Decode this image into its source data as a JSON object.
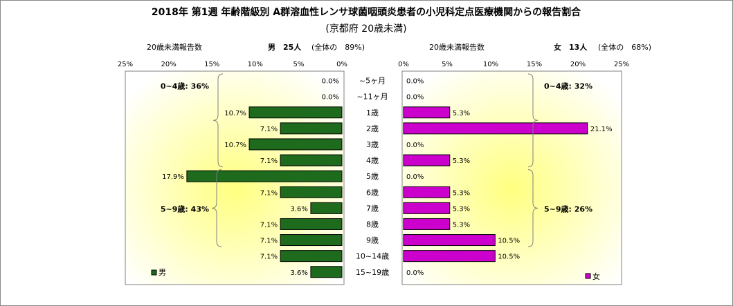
{
  "chart_data": {
    "type": "bar",
    "title": "2018年 第1週 年齢階級別 A群溶血性レンサ球菌咽頭炎患者の小児科定点医療機関からの報告割合",
    "subtitle": "(京都府 20歳未満)",
    "categories": [
      "~5ヶ月",
      "~11ヶ月",
      "1歳",
      "2歳",
      "3歳",
      "4歳",
      "5歳",
      "6歳",
      "7歳",
      "8歳",
      "9歳",
      "10~14歳",
      "15~19歳"
    ],
    "series": [
      {
        "name": "男",
        "color": "#1e6b1e",
        "values": [
          0.0,
          0.0,
          10.7,
          7.1,
          10.7,
          7.1,
          17.9,
          7.1,
          3.6,
          7.1,
          7.1,
          7.1,
          3.6
        ],
        "value_labels": [
          "0.0%",
          "0.0%",
          "10.7%",
          "7.1%",
          "10.7%",
          "7.1%",
          "17.9%",
          "7.1%",
          "3.6%",
          "7.1%",
          "7.1%",
          "7.1%",
          "3.6%"
        ],
        "header_label": "20歳未満報告数",
        "header_count": "男　25人",
        "header_share": "(全体の　89%)",
        "groups": [
          {
            "label": "0~4歳: 36%",
            "from": 0,
            "to": 5
          },
          {
            "label": "5~9歳: 43%",
            "from": 6,
            "to": 10
          }
        ]
      },
      {
        "name": "女",
        "color": "#cc00cc",
        "values": [
          0.0,
          0.0,
          5.3,
          21.1,
          0.0,
          5.3,
          0.0,
          5.3,
          5.3,
          5.3,
          10.5,
          10.5,
          0.0
        ],
        "value_labels": [
          "0.0%",
          "0.0%",
          "5.3%",
          "21.1%",
          "0.0%",
          "5.3%",
          "0.0%",
          "5.3%",
          "5.3%",
          "5.3%",
          "10.5%",
          "10.5%",
          "0.0%"
        ],
        "header_label": "20歳未満報告数",
        "header_count": "女　13人",
        "header_share": "(全体の　68%)",
        "groups": [
          {
            "label": "0~4歳: 32%",
            "from": 0,
            "to": 5
          },
          {
            "label": "5~9歳: 26%",
            "from": 6,
            "to": 10
          }
        ]
      }
    ],
    "xlim": [
      0,
      25
    ],
    "ticks": [
      "0%",
      "5%",
      "10%",
      "15%",
      "20%",
      "25%"
    ],
    "legend_placement": "bottom-outer-corners"
  }
}
